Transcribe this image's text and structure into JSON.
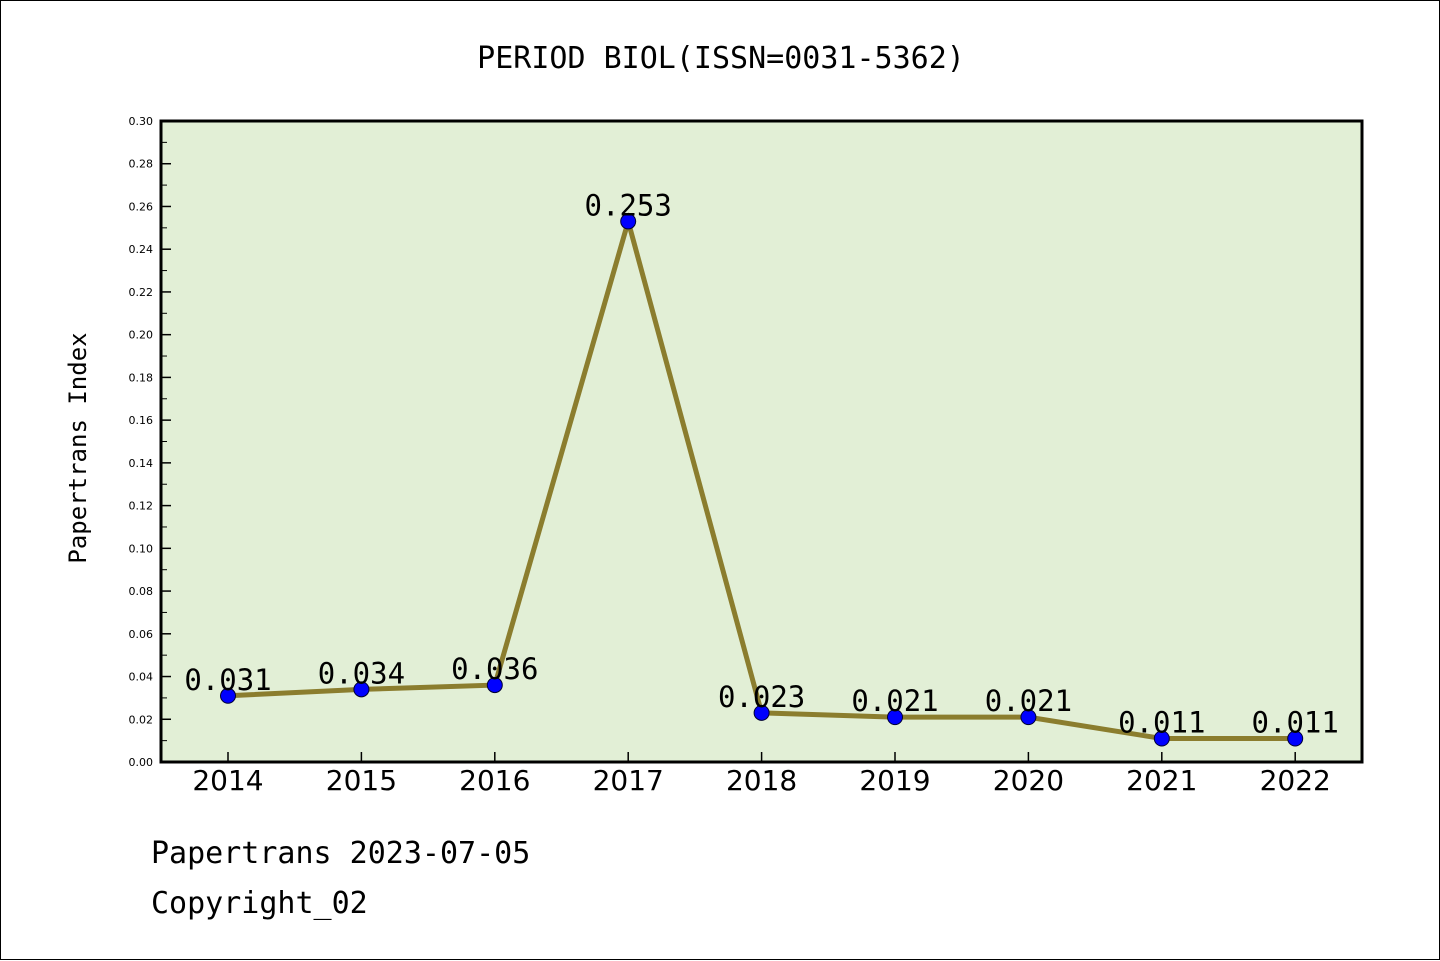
{
  "chart_data": {
    "type": "line",
    "title": "PERIOD BIOL(ISSN=0031-5362)",
    "ylabel": "Papertrans Index",
    "xlabel": "",
    "categories": [
      "2014",
      "2015",
      "2016",
      "2017",
      "2018",
      "2019",
      "2020",
      "2021",
      "2022"
    ],
    "values": [
      0.031,
      0.034,
      0.036,
      0.253,
      0.023,
      0.021,
      0.021,
      0.011,
      0.011
    ],
    "data_labels": [
      "0.031",
      "0.034",
      "0.036",
      "0.253",
      "0.023",
      "0.021",
      "0.021",
      "0.011",
      "0.011"
    ],
    "ylim": [
      0,
      0.3
    ],
    "yticks": [
      "0.00",
      "0.02",
      "0.04",
      "0.06",
      "0.08",
      "0.10",
      "0.12",
      "0.14",
      "0.16",
      "0.18",
      "0.20",
      "0.22",
      "0.24",
      "0.26",
      "0.28",
      "0.30"
    ],
    "grid": false,
    "legend": "none",
    "colors": {
      "line": "#8b7d2e",
      "marker": "#0000ff",
      "plot_background": "#e2efd6"
    }
  },
  "footer": {
    "line1": "Papertrans 2023-07-05",
    "line2": "Copyright_02"
  }
}
